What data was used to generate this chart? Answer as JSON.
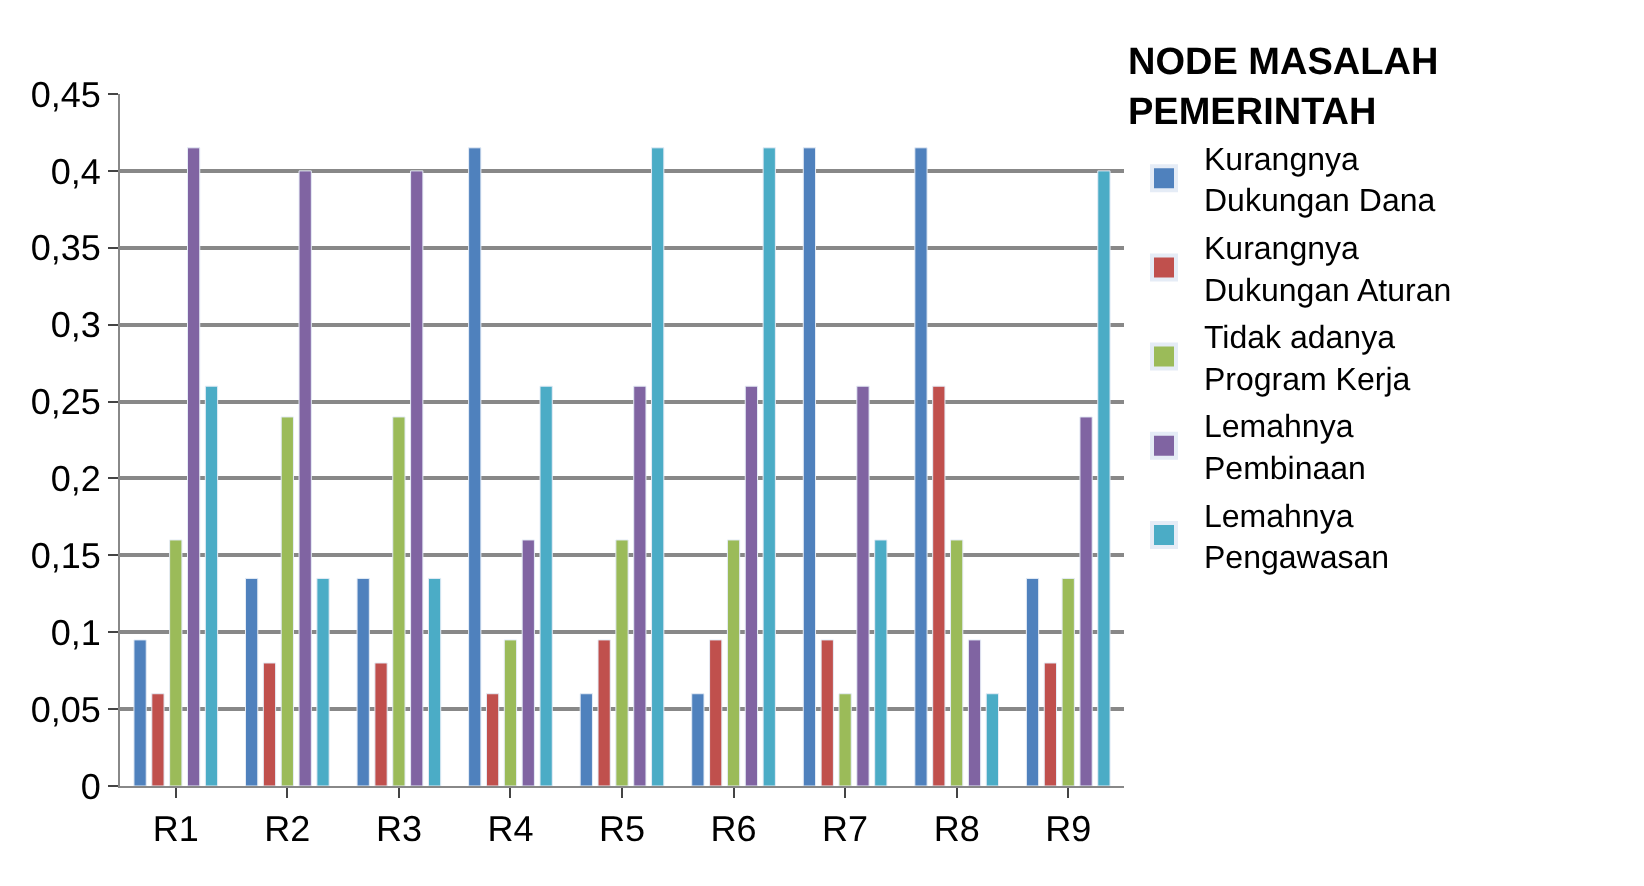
{
  "chart_data": {
    "type": "bar",
    "legend_title": "NODE MASALAH PEMERINTAH",
    "categories": [
      "R1",
      "R2",
      "R3",
      "R4",
      "R5",
      "R6",
      "R7",
      "R8",
      "R9"
    ],
    "series": [
      {
        "name": "Kurangnya Dukungan Dana",
        "color": "#4f81bd",
        "values": [
          0.095,
          0.135,
          0.135,
          0.415,
          0.06,
          0.06,
          0.415,
          0.415,
          0.135
        ]
      },
      {
        "name": "Kurangnya Dukungan Aturan",
        "color": "#c0504d",
        "values": [
          0.06,
          0.08,
          0.08,
          0.06,
          0.095,
          0.095,
          0.095,
          0.26,
          0.08
        ]
      },
      {
        "name": "Tidak adanya Program Kerja",
        "color": "#9bbb59",
        "values": [
          0.16,
          0.24,
          0.24,
          0.095,
          0.16,
          0.16,
          0.06,
          0.16,
          0.135
        ]
      },
      {
        "name": "Lemahnya Pembinaan",
        "color": "#8064a2",
        "values": [
          0.415,
          0.4,
          0.4,
          0.16,
          0.26,
          0.26,
          0.26,
          0.095,
          0.24
        ]
      },
      {
        "name": "Lemahnya Pengawasan",
        "color": "#4bacc6",
        "values": [
          0.26,
          0.135,
          0.135,
          0.26,
          0.415,
          0.415,
          0.16,
          0.06,
          0.4
        ]
      }
    ],
    "ylim": [
      0,
      0.45
    ],
    "yticks": [
      {
        "value": 0,
        "label": "0"
      },
      {
        "value": 0.05,
        "label": "0,05"
      },
      {
        "value": 0.1,
        "label": "0,1"
      },
      {
        "value": 0.15,
        "label": "0,15"
      },
      {
        "value": 0.2,
        "label": "0,2"
      },
      {
        "value": 0.25,
        "label": "0,25"
      },
      {
        "value": 0.3,
        "label": "0,3"
      },
      {
        "value": 0.35,
        "label": "0,35"
      },
      {
        "value": 0.4,
        "label": "0,4"
      },
      {
        "value": 0.45,
        "label": "0,45"
      }
    ],
    "grid": "y",
    "legend": "right"
  }
}
